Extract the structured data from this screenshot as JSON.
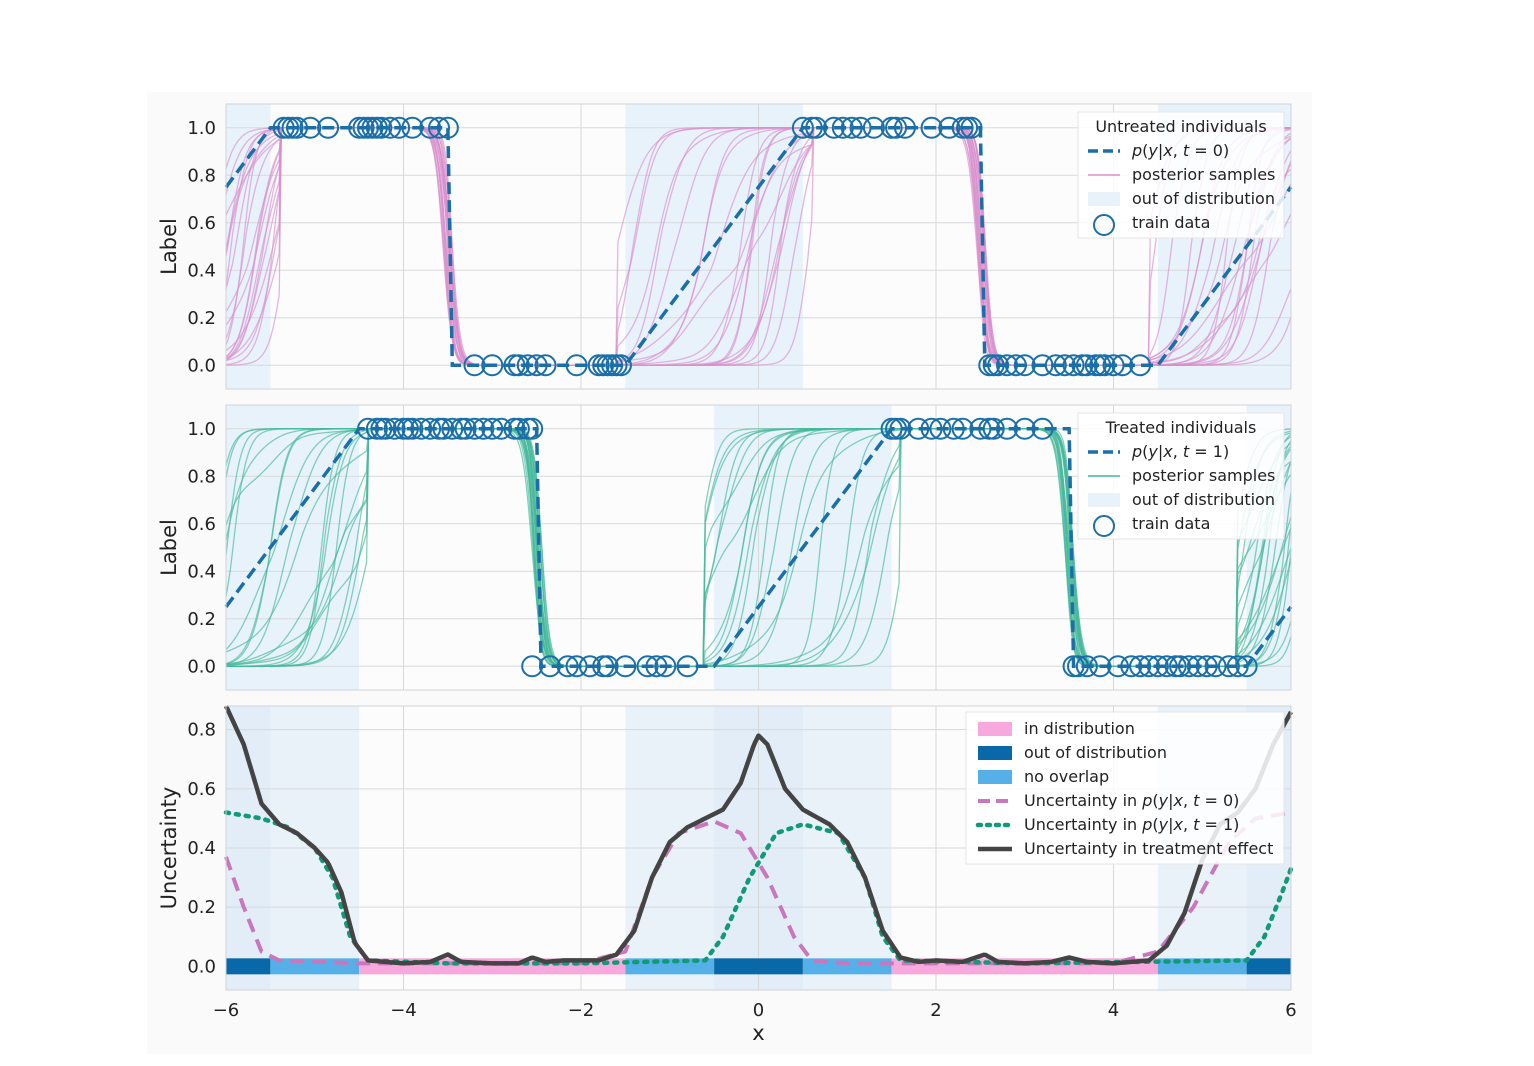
{
  "chart_data": [
    {
      "type": "line",
      "panel": "top",
      "ylabel": "Label",
      "xlim": [
        -6,
        6
      ],
      "ylim": [
        -0.1,
        1.1
      ],
      "xticks": [
        -6,
        -4,
        -2,
        0,
        2,
        4,
        6
      ],
      "yticks": [
        0.0,
        0.2,
        0.4,
        0.6,
        0.8,
        1.0
      ],
      "ytick_labels": [
        "0.0",
        "0.2",
        "0.4",
        "0.6",
        "0.8",
        "1.0"
      ],
      "legend": {
        "title": "Untreated individuals",
        "entries": [
          {
            "label": "p(y|x, t = 0)",
            "math": [
              "p",
              "(",
              "y",
              "|",
              "x",
              ", ",
              "t",
              " = 0)"
            ],
            "kind": "dashed",
            "color": "#1a6fa8"
          },
          {
            "label": "posterior samples",
            "kind": "line",
            "color": "#d88fcd"
          },
          {
            "label": "out of distribution",
            "kind": "patch",
            "color": "#e8f2fb"
          },
          {
            "label": "train data",
            "kind": "circle",
            "color": "#1a6fa8"
          }
        ]
      },
      "true_curve_points": [
        [
          -6,
          0.75
        ],
        [
          -5.5,
          1.0
        ],
        [
          -3.5,
          1.0
        ],
        [
          -3.45,
          0.0
        ],
        [
          -1.5,
          0.0
        ],
        [
          0.5,
          1.0
        ],
        [
          2.5,
          1.0
        ],
        [
          2.55,
          0.0
        ],
        [
          4.5,
          0.0
        ],
        [
          6,
          0.75
        ]
      ],
      "ood_regions": [
        [
          -6,
          -5.5
        ],
        [
          -1.5,
          0.5
        ],
        [
          4.5,
          6
        ]
      ],
      "train_x_ones": [
        -5.35,
        -5.3,
        -5.25,
        -5.2,
        -5.05,
        -4.85,
        -4.5,
        -4.45,
        -4.4,
        -4.35,
        -4.3,
        -4.25,
        -4.15,
        -4.05,
        -3.9,
        -3.7,
        -3.6,
        -3.5,
        0.5,
        0.6,
        0.65,
        0.85,
        0.95,
        1.05,
        1.15,
        1.3,
        1.5,
        1.55,
        1.65,
        1.95,
        2.15,
        2.3,
        2.35,
        2.4
      ],
      "train_x_zeros": [
        -3.2,
        -3.0,
        -2.75,
        -2.7,
        -2.6,
        -2.5,
        -2.4,
        -2.05,
        -1.8,
        -1.75,
        -1.7,
        -1.65,
        -1.6,
        -1.55,
        2.6,
        2.65,
        2.7,
        2.8,
        2.9,
        3.0,
        3.2,
        3.35,
        3.45,
        3.55,
        3.65,
        3.7,
        3.8,
        3.85,
        3.9,
        4.0,
        4.1,
        4.3
      ]
    },
    {
      "type": "line",
      "panel": "middle",
      "ylabel": "Label",
      "xlim": [
        -6,
        6
      ],
      "ylim": [
        -0.1,
        1.1
      ],
      "xticks": [
        -6,
        -4,
        -2,
        0,
        2,
        4,
        6
      ],
      "yticks": [
        0.0,
        0.2,
        0.4,
        0.6,
        0.8,
        1.0
      ],
      "ytick_labels": [
        "0.0",
        "0.2",
        "0.4",
        "0.6",
        "0.8",
        "1.0"
      ],
      "legend": {
        "title": "Treated individuals",
        "entries": [
          {
            "label": "p(y|x, t = 1)",
            "math": [
              "p",
              "(",
              "y",
              "|",
              "x",
              ", ",
              "t",
              " = 1)"
            ],
            "kind": "dashed",
            "color": "#1a6fa8"
          },
          {
            "label": "posterior samples",
            "kind": "line",
            "color": "#45b89a"
          },
          {
            "label": "out of distribution",
            "kind": "patch",
            "color": "#e8f2fb"
          },
          {
            "label": "train data",
            "kind": "circle",
            "color": "#1a6fa8"
          }
        ]
      },
      "true_curve_points": [
        [
          -6,
          0.25
        ],
        [
          -4.5,
          1.0
        ],
        [
          -2.5,
          1.0
        ],
        [
          -2.45,
          0.0
        ],
        [
          -0.5,
          0.0
        ],
        [
          1.5,
          1.0
        ],
        [
          3.5,
          1.0
        ],
        [
          3.55,
          0.0
        ],
        [
          5.5,
          0.0
        ],
        [
          6,
          0.25
        ]
      ],
      "ood_regions": [
        [
          -6,
          -4.5
        ],
        [
          -0.5,
          1.5
        ],
        [
          5.5,
          6
        ]
      ],
      "train_x_ones": [
        -4.4,
        -4.3,
        -4.25,
        -4.2,
        -4.1,
        -4.0,
        -3.95,
        -3.9,
        -3.8,
        -3.7,
        -3.6,
        -3.55,
        -3.45,
        -3.35,
        -3.3,
        -3.2,
        -3.1,
        -3.0,
        -2.9,
        -2.75,
        -2.7,
        -2.6,
        -2.55,
        1.5,
        1.55,
        1.6,
        1.8,
        1.95,
        2.05,
        2.2,
        2.3,
        2.5,
        2.6,
        2.65,
        2.8,
        3.0,
        3.2
      ],
      "train_x_zeros": [
        -2.55,
        -2.35,
        -2.15,
        -2.05,
        -1.9,
        -1.75,
        -1.7,
        -1.5,
        -1.25,
        -1.15,
        -1.05,
        -0.8,
        3.55,
        3.6,
        3.7,
        3.85,
        4.05,
        4.2,
        4.3,
        4.4,
        4.5,
        4.6,
        4.7,
        4.75,
        4.85,
        4.95,
        5.05,
        5.15,
        5.3,
        5.4,
        5.5
      ]
    },
    {
      "type": "line",
      "panel": "bottom",
      "xlabel": "x",
      "ylabel": "Uncertainty",
      "xlim": [
        -6,
        6
      ],
      "ylim": [
        -0.08,
        0.88
      ],
      "xticks": [
        -6,
        -4,
        -2,
        0,
        2,
        4,
        6
      ],
      "xtick_labels": [
        "−6",
        "−4",
        "−2",
        "0",
        "2",
        "4",
        "6"
      ],
      "yticks": [
        0.0,
        0.2,
        0.4,
        0.6,
        0.8
      ],
      "ytick_labels": [
        "0.0",
        "0.2",
        "0.4",
        "0.6",
        "0.8"
      ],
      "legend": {
        "entries": [
          {
            "label": "in distribution",
            "kind": "patch",
            "color": "#f7a8dc"
          },
          {
            "label": "out of distribution",
            "kind": "patch",
            "color": "#0868a8"
          },
          {
            "label": "no overlap",
            "kind": "patch",
            "color": "#56b0e8"
          },
          {
            "label": "Uncertainty in p(y|x, t = 0)",
            "math": [
              "Uncertainty in ",
              "p",
              "(",
              "y",
              "|",
              "x",
              ", ",
              "t",
              " = 0)"
            ],
            "kind": "dashed",
            "color": "#c977bd"
          },
          {
            "label": "Uncertainty in p(y|x, t = 1)",
            "math": [
              "Uncertainty in ",
              "p",
              "(",
              "y",
              "|",
              "x",
              ", ",
              "t",
              " = 1)"
            ],
            "kind": "dotted",
            "color": "#109a78"
          },
          {
            "label": "Uncertainty in treatment effect",
            "kind": "line",
            "color": "#444444"
          }
        ]
      },
      "regions_strip": [
        {
          "from": -6,
          "to": -5.5,
          "kind": "out of distribution"
        },
        {
          "from": -5.5,
          "to": -4.5,
          "kind": "no overlap"
        },
        {
          "from": -4.5,
          "to": -1.5,
          "kind": "in distribution"
        },
        {
          "from": -1.5,
          "to": -0.5,
          "kind": "no overlap"
        },
        {
          "from": -0.5,
          "to": 0.5,
          "kind": "out of distribution"
        },
        {
          "from": 0.5,
          "to": 1.5,
          "kind": "no overlap"
        },
        {
          "from": 1.5,
          "to": 4.5,
          "kind": "in distribution"
        },
        {
          "from": 4.5,
          "to": 5.5,
          "kind": "no overlap"
        },
        {
          "from": 5.5,
          "to": 6,
          "kind": "out of distribution"
        }
      ],
      "series": [
        {
          "name": "Uncertainty in p(y|x, t = 0)",
          "points": [
            [
              -6,
              0.37
            ],
            [
              -5.8,
              0.2
            ],
            [
              -5.6,
              0.05
            ],
            [
              -5.4,
              0.02
            ],
            [
              -4.5,
              0.01
            ],
            [
              -3.5,
              0.01
            ],
            [
              -2.0,
              0.01
            ],
            [
              -1.5,
              0.05
            ],
            [
              -1.2,
              0.3
            ],
            [
              -0.9,
              0.45
            ],
            [
              -0.5,
              0.49
            ],
            [
              -0.2,
              0.45
            ],
            [
              0.1,
              0.3
            ],
            [
              0.4,
              0.1
            ],
            [
              0.6,
              0.02
            ],
            [
              1.0,
              0.01
            ],
            [
              2.5,
              0.01
            ],
            [
              4.0,
              0.01
            ],
            [
              4.5,
              0.05
            ],
            [
              4.9,
              0.2
            ],
            [
              5.3,
              0.42
            ],
            [
              5.6,
              0.5
            ],
            [
              6.0,
              0.52
            ]
          ]
        },
        {
          "name": "Uncertainty in p(y|x, t = 1)",
          "points": [
            [
              -6,
              0.52
            ],
            [
              -5.6,
              0.5
            ],
            [
              -5.3,
              0.47
            ],
            [
              -5.0,
              0.4
            ],
            [
              -4.8,
              0.3
            ],
            [
              -4.6,
              0.1
            ],
            [
              -4.4,
              0.02
            ],
            [
              -3.5,
              0.01
            ],
            [
              -2.0,
              0.01
            ],
            [
              -0.6,
              0.02
            ],
            [
              -0.4,
              0.1
            ],
            [
              -0.1,
              0.3
            ],
            [
              0.2,
              0.45
            ],
            [
              0.5,
              0.48
            ],
            [
              0.9,
              0.45
            ],
            [
              1.2,
              0.3
            ],
            [
              1.4,
              0.1
            ],
            [
              1.6,
              0.02
            ],
            [
              3.0,
              0.01
            ],
            [
              5.5,
              0.02
            ],
            [
              5.7,
              0.1
            ],
            [
              5.9,
              0.25
            ],
            [
              6.0,
              0.33
            ]
          ]
        },
        {
          "name": "Uncertainty in treatment effect",
          "points": [
            [
              -6,
              0.88
            ],
            [
              -5.8,
              0.75
            ],
            [
              -5.6,
              0.55
            ],
            [
              -5.4,
              0.48
            ],
            [
              -5.2,
              0.45
            ],
            [
              -5.0,
              0.4
            ],
            [
              -4.85,
              0.35
            ],
            [
              -4.7,
              0.25
            ],
            [
              -4.55,
              0.08
            ],
            [
              -4.4,
              0.02
            ],
            [
              -4.0,
              0.01
            ],
            [
              -3.7,
              0.015
            ],
            [
              -3.5,
              0.04
            ],
            [
              -3.35,
              0.015
            ],
            [
              -3.0,
              0.01
            ],
            [
              -2.7,
              0.01
            ],
            [
              -2.55,
              0.03
            ],
            [
              -2.4,
              0.015
            ],
            [
              -2.2,
              0.02
            ],
            [
              -2.0,
              0.02
            ],
            [
              -1.8,
              0.02
            ],
            [
              -1.6,
              0.04
            ],
            [
              -1.4,
              0.12
            ],
            [
              -1.2,
              0.3
            ],
            [
              -1.0,
              0.42
            ],
            [
              -0.8,
              0.47
            ],
            [
              -0.6,
              0.5
            ],
            [
              -0.4,
              0.53
            ],
            [
              -0.2,
              0.62
            ],
            [
              -0.05,
              0.75
            ],
            [
              0.0,
              0.78
            ],
            [
              0.1,
              0.75
            ],
            [
              0.3,
              0.6
            ],
            [
              0.5,
              0.53
            ],
            [
              0.8,
              0.48
            ],
            [
              1.0,
              0.42
            ],
            [
              1.2,
              0.3
            ],
            [
              1.4,
              0.12
            ],
            [
              1.6,
              0.03
            ],
            [
              1.8,
              0.015
            ],
            [
              2.0,
              0.02
            ],
            [
              2.3,
              0.015
            ],
            [
              2.55,
              0.04
            ],
            [
              2.7,
              0.015
            ],
            [
              3.0,
              0.01
            ],
            [
              3.3,
              0.015
            ],
            [
              3.5,
              0.03
            ],
            [
              3.7,
              0.015
            ],
            [
              4.0,
              0.01
            ],
            [
              4.4,
              0.02
            ],
            [
              4.6,
              0.07
            ],
            [
              4.8,
              0.18
            ],
            [
              5.0,
              0.36
            ],
            [
              5.2,
              0.48
            ],
            [
              5.4,
              0.52
            ],
            [
              5.6,
              0.6
            ],
            [
              5.8,
              0.75
            ],
            [
              6.0,
              0.86
            ]
          ]
        }
      ]
    }
  ]
}
